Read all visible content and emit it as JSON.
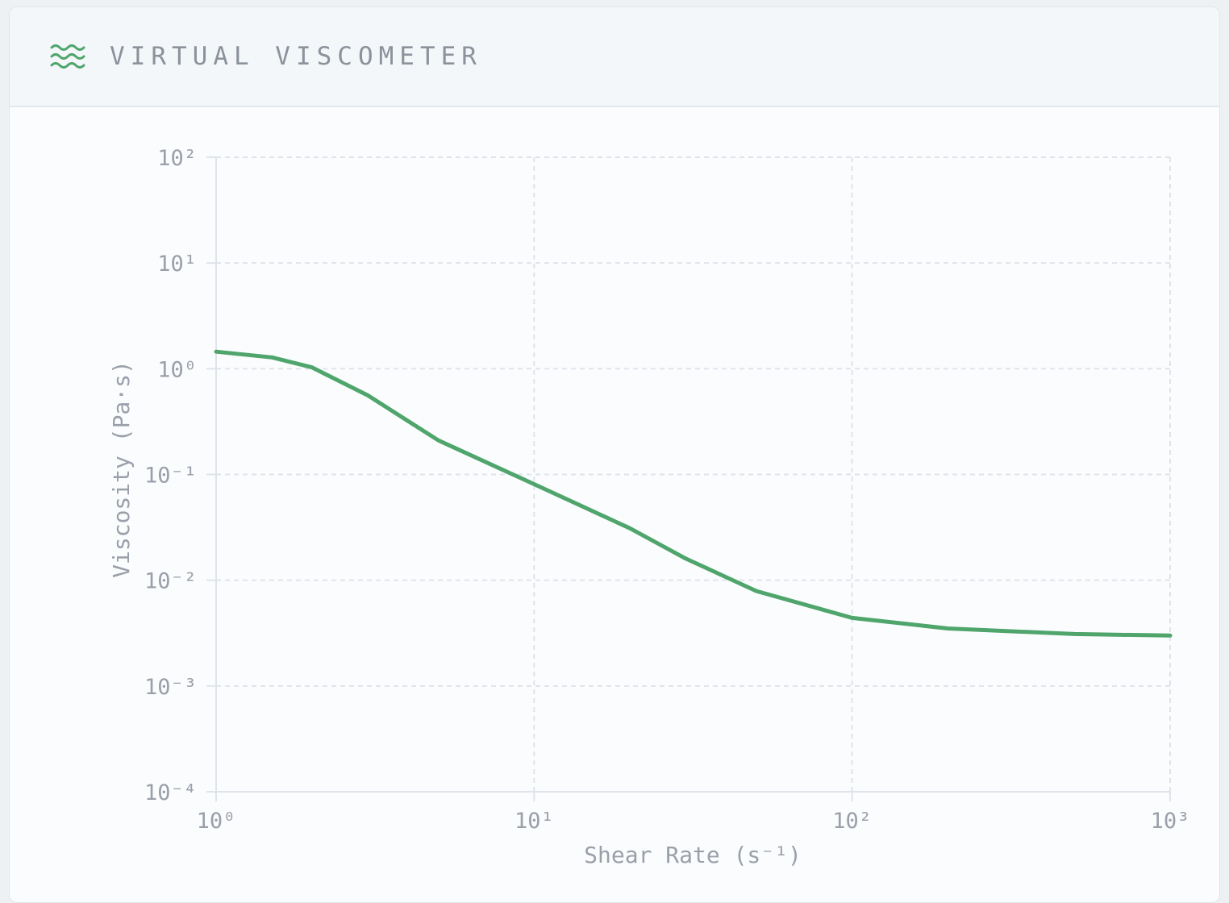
{
  "chart_data": {
    "type": "line",
    "title": "VIRTUAL VISCOMETER",
    "x_label": "Shear Rate (s⁻¹)",
    "y_label": "Viscosity (Pa·s)",
    "x": [
      1,
      1.5,
      2,
      3,
      5,
      10,
      20,
      30,
      50,
      100,
      200,
      500,
      1000
    ],
    "values": [
      1.45,
      1.28,
      1.03,
      0.56,
      0.21,
      0.081,
      0.031,
      0.016,
      0.0079,
      0.0044,
      0.0035,
      0.0031,
      0.003
    ],
    "color": "#4fa56c",
    "x_log": true,
    "y_log": true,
    "grid": true,
    "xlim": [
      1,
      1000
    ],
    "ylim": [
      0.0001,
      100
    ],
    "xticks": [
      {
        "value": 1,
        "label": "10⁰"
      },
      {
        "value": 10,
        "label": "10¹"
      },
      {
        "value": 100,
        "label": "10²"
      },
      {
        "value": 1000,
        "label": "10³"
      }
    ],
    "yticks": [
      {
        "value": 0.0001,
        "label": "10⁻⁴"
      },
      {
        "value": 0.001,
        "label": "10⁻³"
      },
      {
        "value": 0.01,
        "label": "10⁻²"
      },
      {
        "value": 0.1,
        "label": "10⁻¹"
      },
      {
        "value": 1,
        "label": "10⁰"
      },
      {
        "value": 10,
        "label": "10¹"
      },
      {
        "value": 100,
        "label": "10²"
      }
    ]
  }
}
